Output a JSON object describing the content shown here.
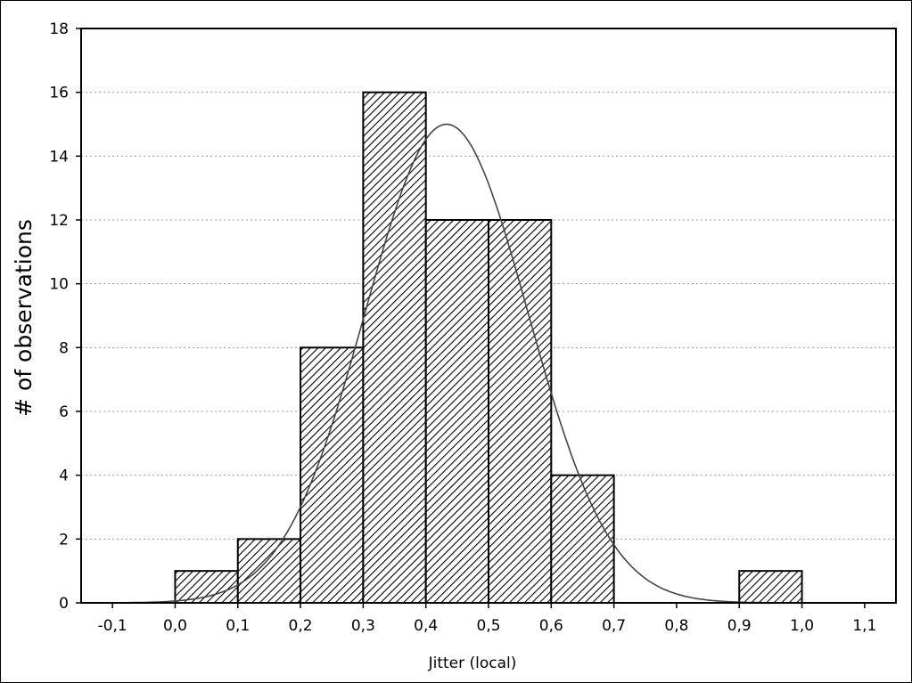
{
  "chart_data": {
    "type": "bar",
    "subtype": "histogram",
    "xlabel": "Jitter (local)",
    "ylabel": "# of observations",
    "xlim": [
      -0.15,
      1.15
    ],
    "ylim": [
      0,
      18
    ],
    "xticks": [
      -0.1,
      0.0,
      0.1,
      0.2,
      0.3,
      0.4,
      0.5,
      0.6,
      0.7,
      0.8,
      0.9,
      1.0,
      1.1
    ],
    "xtick_labels": [
      "-0,1",
      "0,0",
      "0,1",
      "0,2",
      "0,3",
      "0,4",
      "0,5",
      "0,6",
      "0,7",
      "0,8",
      "0,9",
      "1,0",
      "1,1"
    ],
    "yticks": [
      0,
      2,
      4,
      6,
      8,
      10,
      12,
      14,
      16,
      18
    ],
    "ytick_labels": [
      "0",
      "2",
      "4",
      "6",
      "8",
      "10",
      "12",
      "14",
      "16",
      "18"
    ],
    "grid": true,
    "bins": [
      {
        "from": 0.0,
        "to": 0.1,
        "count": 1
      },
      {
        "from": 0.1,
        "to": 0.2,
        "count": 2
      },
      {
        "from": 0.2,
        "to": 0.3,
        "count": 8
      },
      {
        "from": 0.3,
        "to": 0.4,
        "count": 16
      },
      {
        "from": 0.4,
        "to": 0.5,
        "count": 12
      },
      {
        "from": 0.5,
        "to": 0.6,
        "count": 12
      },
      {
        "from": 0.6,
        "to": 0.7,
        "count": 4
      },
      {
        "from": 0.9,
        "to": 1.0,
        "count": 1
      }
    ],
    "fitted_curve": {
      "type": "normal",
      "mean": 0.433,
      "peak": 15.0,
      "sd": 0.13,
      "x_range": [
        -0.12,
        1.0
      ]
    },
    "bar_fill": "hatched",
    "colors": {
      "bar_stroke": "#000000",
      "hatch": "#000000",
      "grid": "#999999",
      "curve": "#444444"
    }
  }
}
